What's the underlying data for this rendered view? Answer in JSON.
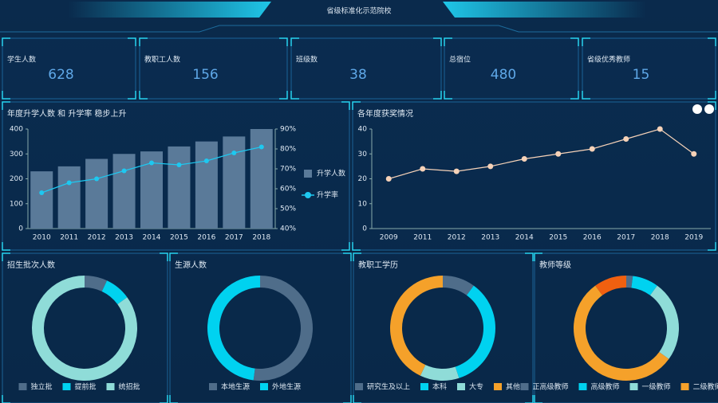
{
  "header": {
    "title": "省级标准化示范院校"
  },
  "kpis": [
    {
      "label": "学生人数",
      "value": 628
    },
    {
      "label": "教职工人数",
      "value": 156
    },
    {
      "label": "班级数",
      "value": 38
    },
    {
      "label": "总宿位",
      "value": 480
    },
    {
      "label": "省级优秀教师",
      "value": 15
    }
  ],
  "chart_data": [
    {
      "type": "bar",
      "title": "年度升学人数 和 升学率 稳步上升",
      "categories": [
        "2010",
        "2011",
        "2012",
        "2013",
        "2014",
        "2015",
        "2016",
        "2017",
        "2018"
      ],
      "series": [
        {
          "name": "升学人数",
          "color": "#5a7a99",
          "values": [
            230,
            250,
            280,
            300,
            310,
            330,
            350,
            370,
            400
          ]
        },
        {
          "name": "升学率",
          "color": "#1ec8f0",
          "type": "line",
          "axis": "y2",
          "values": [
            58,
            63,
            65,
            69,
            73,
            72,
            74,
            78,
            81
          ]
        }
      ],
      "ylim": [
        0,
        400
      ],
      "yticks": [
        0,
        100,
        200,
        300,
        400
      ],
      "y2lim": [
        40,
        90
      ],
      "y2ticks": [
        {
          "value": 40,
          "label": "40%"
        },
        {
          "value": 50,
          "label": "50%"
        },
        {
          "value": 60,
          "label": "60%"
        },
        {
          "value": 70,
          "label": "70%"
        },
        {
          "value": 80,
          "label": "80%"
        },
        {
          "value": 90,
          "label": "90%"
        }
      ],
      "legend": "right"
    },
    {
      "type": "line",
      "title": "各年度获奖情况",
      "categories": [
        "2009",
        "2011",
        "2012",
        "2013",
        "2014",
        "2015",
        "2016",
        "2017",
        "2018",
        "2019"
      ],
      "values": [
        20,
        24,
        23,
        25,
        28,
        30,
        32,
        36,
        40,
        30
      ],
      "color": "#f6d2b8",
      "ylim": [
        0,
        40
      ],
      "yticks": [
        0,
        10,
        20,
        30,
        40
      ]
    },
    {
      "type": "pie",
      "title": "招生批次人数",
      "categories": [
        "独立批",
        "提前批",
        "统招批"
      ],
      "values": [
        7,
        8,
        85
      ],
      "colors": [
        "#4f6d8a",
        "#00d2f0",
        "#8fdcd8"
      ]
    },
    {
      "type": "pie",
      "title": "生源人数",
      "categories": [
        "本地生源",
        "外地生源"
      ],
      "values": [
        52,
        48
      ],
      "colors": [
        "#4f6d8a",
        "#00d2f0"
      ]
    },
    {
      "type": "pie",
      "title": "教职工学历",
      "categories": [
        "研究生及以上",
        "本科",
        "大专",
        "其他"
      ],
      "values": [
        10,
        35,
        12,
        43
      ],
      "colors": [
        "#4f6d8a",
        "#00d2f0",
        "#8fdcd8",
        "#f5a12a"
      ]
    },
    {
      "type": "pie",
      "title": "教师等级",
      "categories": [
        "正高级教师",
        "高级教师",
        "一级教师",
        "二级教师",
        null
      ],
      "values": [
        2,
        8,
        25,
        55,
        10
      ],
      "colors": [
        "#4f6d8a",
        "#00d2f0",
        "#8fdcd8",
        "#f5a12a",
        "#f06010"
      ]
    }
  ]
}
